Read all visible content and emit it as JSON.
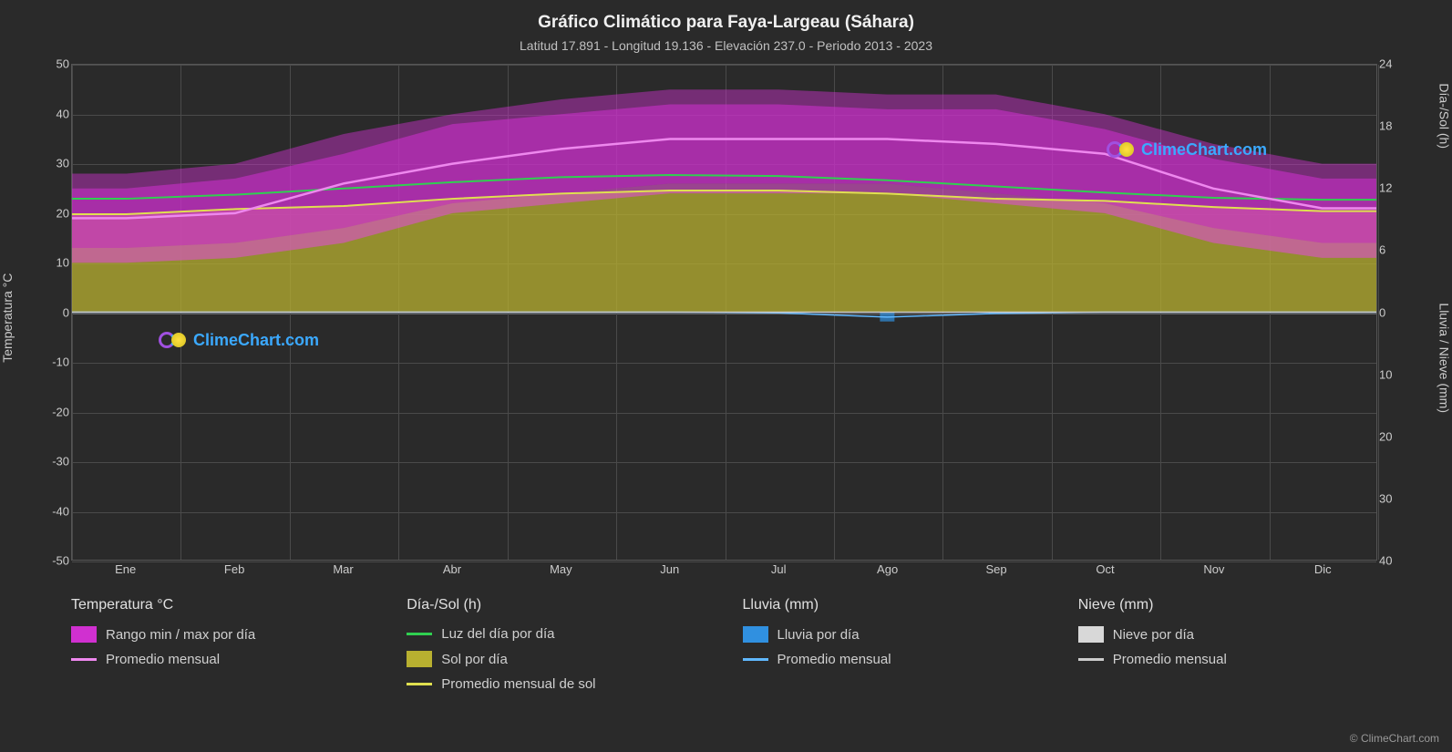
{
  "title": "Gráfico Climático para Faya-Largeau (Sáhara)",
  "subtitle": "Latitud 17.891 - Longitud 19.136 - Elevación 237.0 - Periodo 2013 - 2023",
  "brand": "ClimeChart.com",
  "copyright": "© ClimeChart.com",
  "background_color": "#2a2a2a",
  "plot_bg": "#303030",
  "grid_color": "#4a4a4a",
  "text_color": "#e6e6e6",
  "left_axis": {
    "label": "Temperatura °C",
    "min": -50,
    "max": 50,
    "step": 10,
    "ticks": [
      50,
      40,
      30,
      20,
      10,
      0,
      -10,
      -20,
      -30,
      -40,
      -50
    ]
  },
  "right_axis_top": {
    "label": "Día-/Sol (h)",
    "min": 0,
    "max": 24,
    "step": 6,
    "ticks": [
      24,
      18,
      12,
      6,
      0
    ]
  },
  "right_axis_bottom": {
    "label": "Lluvia / Nieve (mm)",
    "min": 0,
    "max": 40,
    "step": 10,
    "ticks": [
      0,
      10,
      20,
      30,
      40
    ]
  },
  "x_axis": {
    "months": [
      "Ene",
      "Feb",
      "Mar",
      "Abr",
      "May",
      "Jun",
      "Jul",
      "Ago",
      "Sep",
      "Oct",
      "Nov",
      "Dic"
    ]
  },
  "series": {
    "temp_range": {
      "type": "band",
      "color_fill": "#d030d0",
      "color_fill_low": "#e070c0",
      "opacity": 0.75,
      "max": [
        28,
        30,
        36,
        40,
        43,
        45,
        45,
        44,
        44,
        40,
        34,
        30
      ],
      "min": [
        10,
        11,
        14,
        20,
        22,
        24,
        24,
        24,
        22,
        20,
        14,
        11
      ],
      "mid_upper": [
        25,
        27,
        32,
        38,
        40,
        42,
        42,
        41,
        41,
        37,
        31,
        27
      ],
      "mid_lower": [
        13,
        14,
        17,
        22,
        24,
        26,
        26,
        26,
        24,
        22,
        17,
        14
      ]
    },
    "temp_avg": {
      "type": "line",
      "color": "#ee88ee",
      "width": 2.5,
      "values": [
        19,
        20,
        26,
        30,
        33,
        35,
        35,
        35,
        34,
        32,
        25,
        21
      ]
    },
    "daylight": {
      "type": "line",
      "color": "#30d050",
      "width": 2,
      "values_hours": [
        11.0,
        11.4,
        12.0,
        12.6,
        13.1,
        13.3,
        13.2,
        12.8,
        12.2,
        11.6,
        11.1,
        10.9
      ]
    },
    "sunshine_fill": {
      "type": "area",
      "color": "#b8b030",
      "opacity": 0.75,
      "values_hours": [
        9.5,
        10.0,
        10.3,
        11.0,
        11.5,
        11.8,
        11.8,
        11.5,
        11.0,
        10.8,
        10.2,
        9.8
      ]
    },
    "sunshine_avg": {
      "type": "line",
      "color": "#e0e050",
      "width": 2,
      "values_hours": [
        9.5,
        10.0,
        10.3,
        11.0,
        11.5,
        11.8,
        11.8,
        11.5,
        11.0,
        10.8,
        10.2,
        9.8
      ]
    },
    "rain_daily": {
      "type": "bars",
      "color": "#3090e0",
      "values_mm": [
        0,
        0,
        0,
        0,
        0,
        0,
        0.2,
        1.5,
        0.3,
        0,
        0,
        0
      ]
    },
    "rain_avg": {
      "type": "line",
      "color": "#60b8ff",
      "width": 1.5,
      "values_mm": [
        0,
        0,
        0,
        0,
        0,
        0,
        0.1,
        0.8,
        0.2,
        0,
        0,
        0
      ]
    },
    "snow_avg": {
      "type": "line",
      "color": "#cccccc",
      "width": 1.5,
      "values_mm": [
        0,
        0,
        0,
        0,
        0,
        0,
        0,
        0,
        0,
        0,
        0,
        0
      ]
    }
  },
  "legend": {
    "columns": [
      {
        "title": "Temperatura °C",
        "items": [
          {
            "swatch_type": "box",
            "color": "#d030d0",
            "label": "Rango min / max por día"
          },
          {
            "swatch_type": "line",
            "color": "#ee88ee",
            "label": "Promedio mensual"
          }
        ]
      },
      {
        "title": "Día-/Sol (h)",
        "items": [
          {
            "swatch_type": "line",
            "color": "#30d050",
            "label": "Luz del día por día"
          },
          {
            "swatch_type": "box",
            "color": "#b8b030",
            "label": "Sol por día"
          },
          {
            "swatch_type": "line",
            "color": "#e0e050",
            "label": "Promedio mensual de sol"
          }
        ]
      },
      {
        "title": "Lluvia (mm)",
        "items": [
          {
            "swatch_type": "box",
            "color": "#3090e0",
            "label": "Lluvia por día"
          },
          {
            "swatch_type": "line",
            "color": "#60b8ff",
            "label": "Promedio mensual"
          }
        ]
      },
      {
        "title": "Nieve (mm)",
        "items": [
          {
            "swatch_type": "box",
            "color": "#d8d8d8",
            "label": "Nieve por día"
          },
          {
            "swatch_type": "line",
            "color": "#cccccc",
            "label": "Promedio mensual"
          }
        ]
      }
    ]
  }
}
